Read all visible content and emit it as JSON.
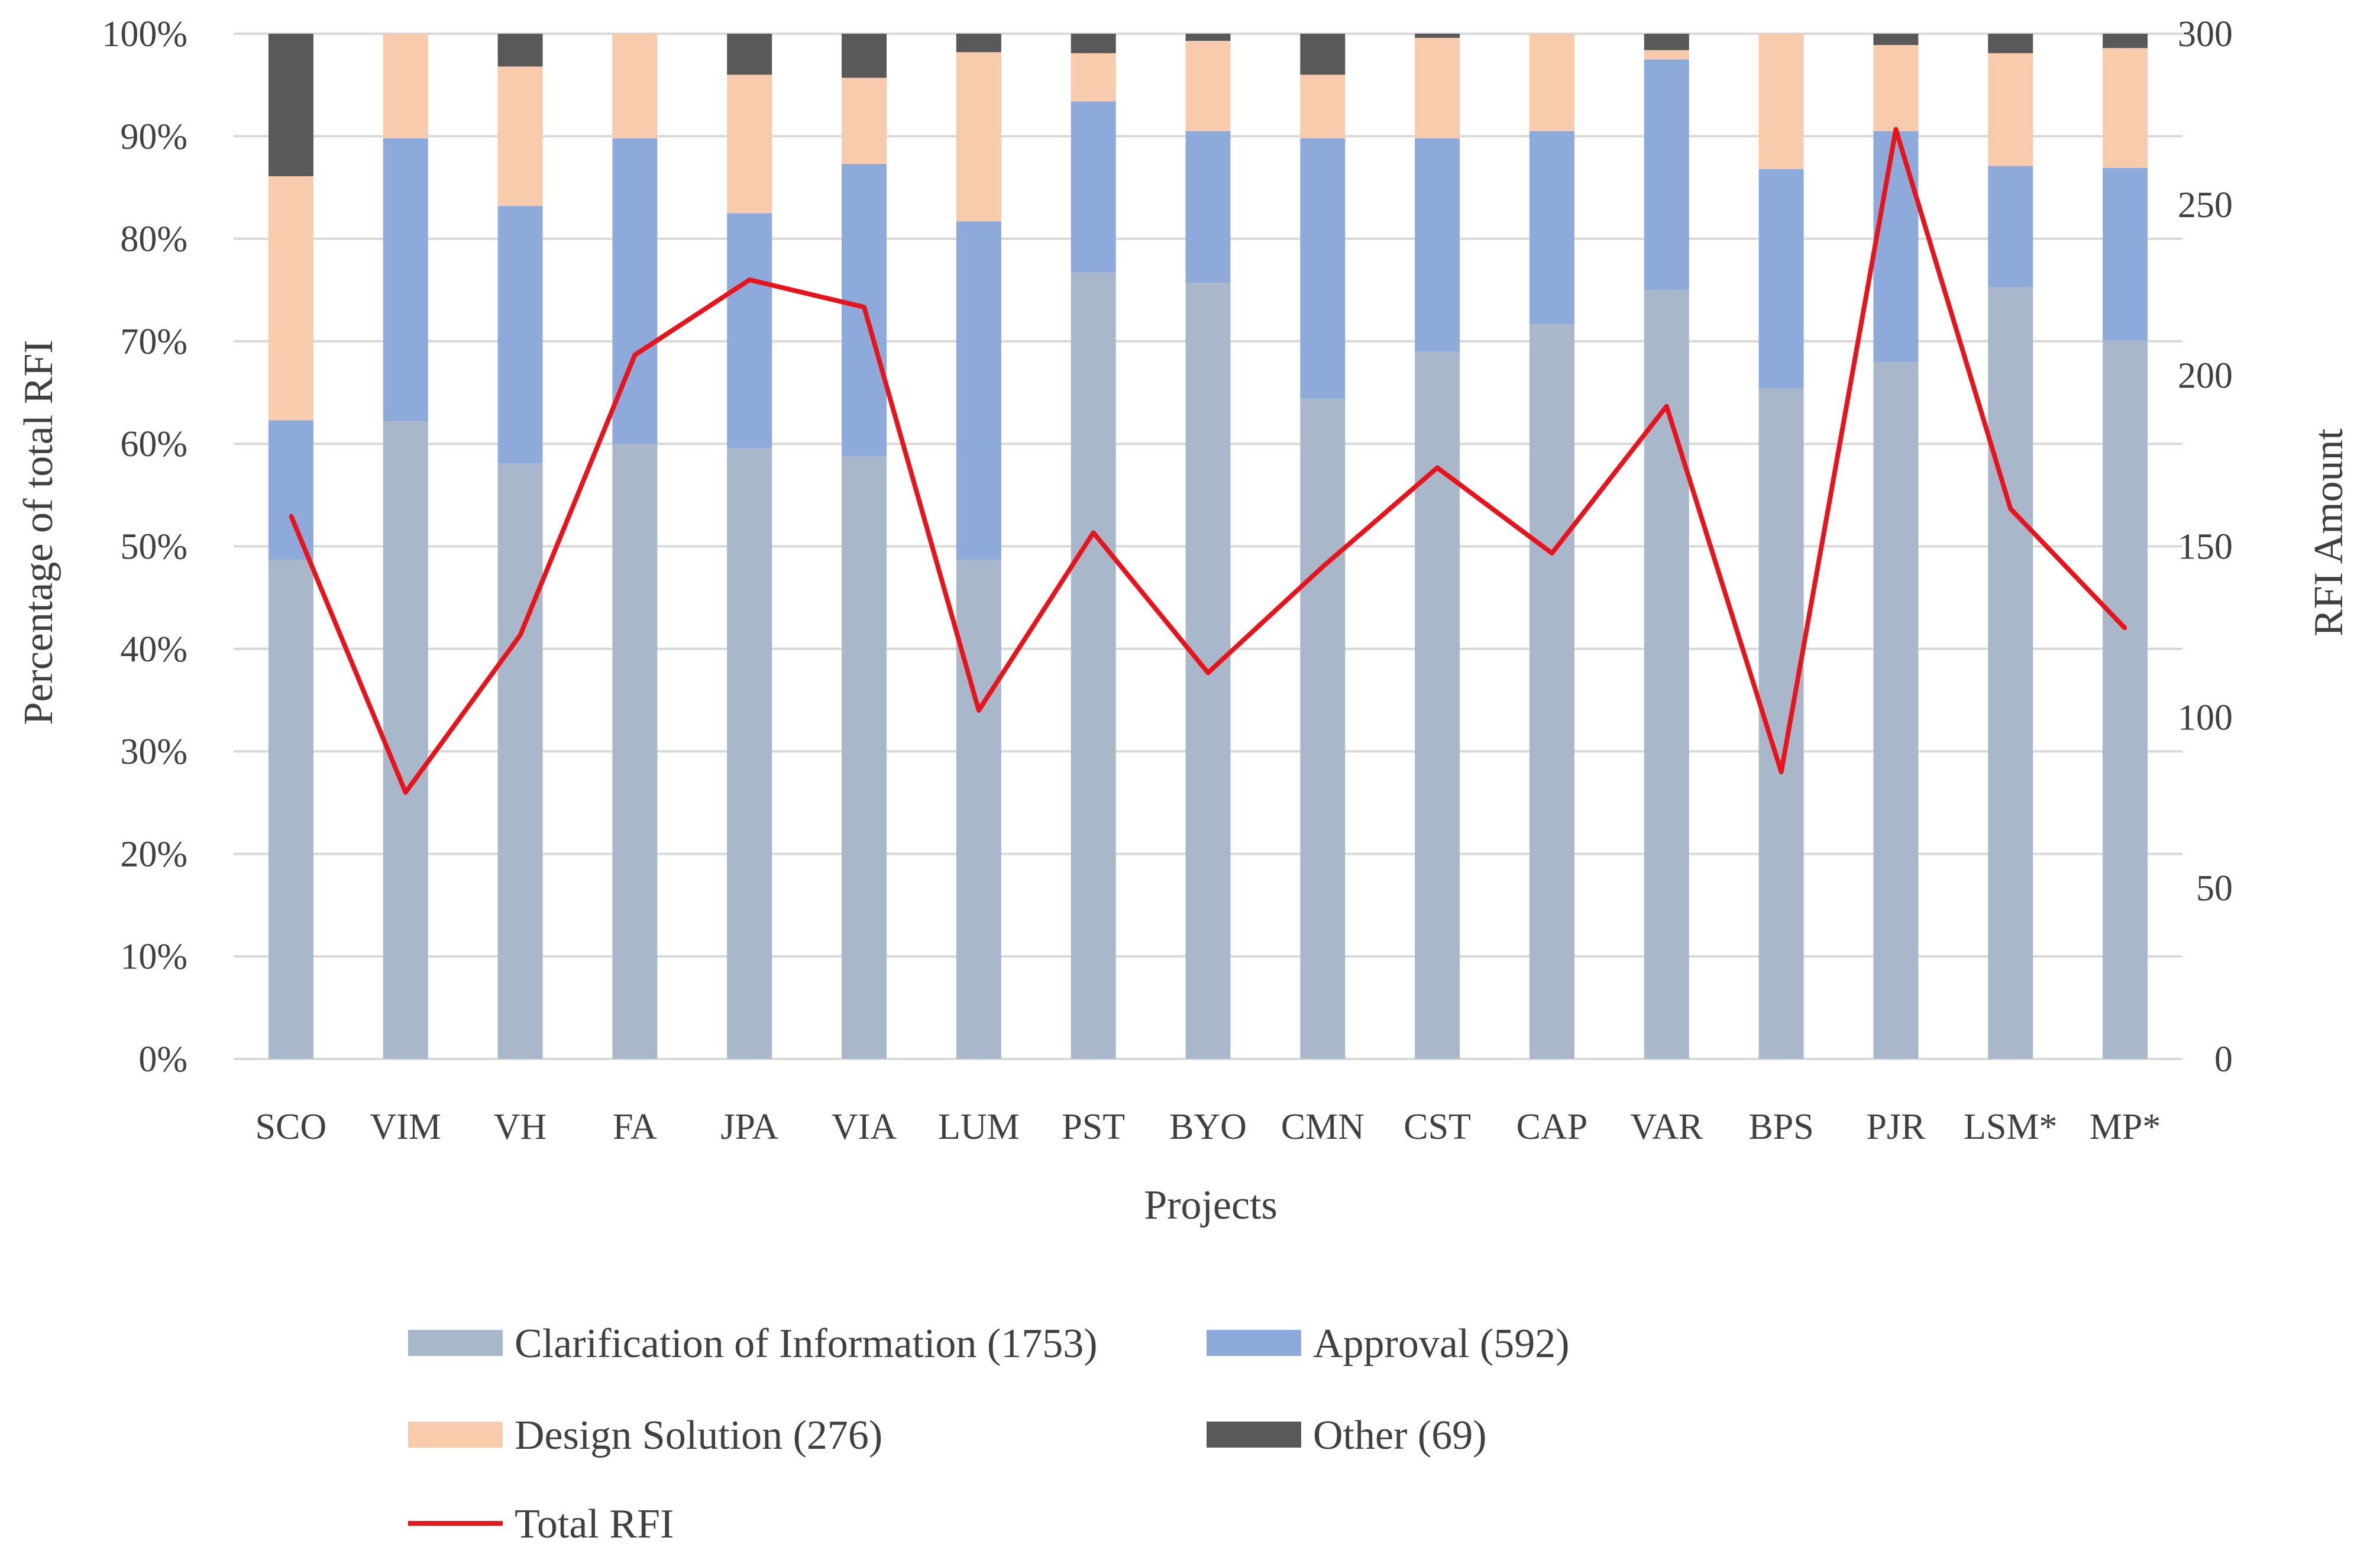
{
  "chart_data": {
    "type": "bar",
    "stacked": true,
    "percent_stacked": true,
    "xlabel": "Projects",
    "ylabel": "Percentage of total RFI",
    "y2label": "RFI Amount",
    "ylim": [
      0,
      100
    ],
    "y2lim": [
      0,
      300
    ],
    "y_ticks": [
      "0%",
      "10%",
      "20%",
      "30%",
      "40%",
      "50%",
      "60%",
      "70%",
      "80%",
      "90%",
      "100%"
    ],
    "y2_ticks": [
      "0",
      "50",
      "100",
      "150",
      "200",
      "250",
      "300"
    ],
    "grid": true,
    "legend_position": "bottom",
    "categories": [
      "SCO",
      "VIM",
      "VH",
      "FA",
      "JPA",
      "VIA",
      "LUM",
      "PST",
      "BYO",
      "CMN",
      "CST",
      "CAP",
      "VAR",
      "BPS",
      "PJR",
      "LSM*",
      "MP*"
    ],
    "series": [
      {
        "name": "Clarification of Information (1753)",
        "kind": "bar",
        "color": "#a9b7cb",
        "values": [
          48.7,
          62.2,
          58.1,
          60.0,
          59.6,
          58.8,
          48.7,
          76.7,
          75.7,
          64.4,
          69.0,
          71.7,
          75.0,
          65.4,
          68.0,
          75.3,
          70.1
        ]
      },
      {
        "name": "Approval (592)",
        "kind": "bar",
        "color": "#8eaadb",
        "values": [
          13.6,
          27.6,
          25.1,
          29.8,
          22.9,
          28.5,
          33.0,
          16.7,
          14.8,
          25.4,
          20.8,
          18.8,
          22.5,
          21.4,
          22.5,
          11.8,
          16.8
        ]
      },
      {
        "name": "Design Solution (276)",
        "kind": "bar",
        "color": "#f8cbad",
        "values": [
          23.8,
          10.2,
          13.6,
          10.2,
          13.5,
          8.4,
          16.5,
          4.7,
          8.8,
          6.2,
          9.8,
          9.5,
          0.9,
          13.2,
          8.4,
          11.0,
          11.7
        ]
      },
      {
        "name": "Other (69)",
        "kind": "bar",
        "color": "#595959",
        "values": [
          13.9,
          0.0,
          3.2,
          0.0,
          4.0,
          4.3,
          1.8,
          1.9,
          0.7,
          4.0,
          0.4,
          0.0,
          1.6,
          0.0,
          1.1,
          1.9,
          1.4
        ]
      },
      {
        "name": "Total RFI",
        "kind": "line",
        "axis": "right",
        "color": "#e8141c",
        "values": [
          159,
          78,
          124,
          206,
          228,
          220,
          102,
          154,
          113,
          144,
          173,
          148,
          191,
          84,
          272,
          161,
          126
        ]
      }
    ]
  }
}
